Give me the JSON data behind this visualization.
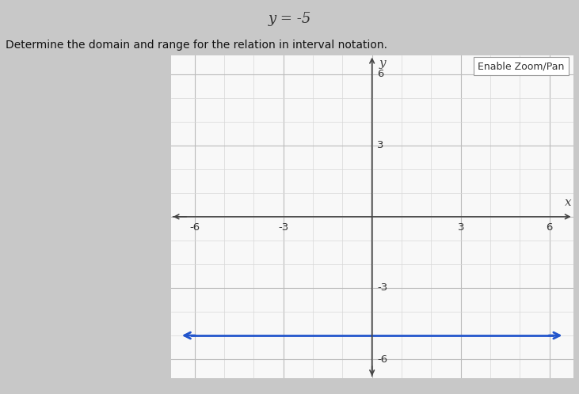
{
  "title": "y = -5",
  "subtitle": "Determine the domain and range for the relation in interval notation.",
  "button_text": "Enable Zoom/Pan",
  "xlim": [
    -6.8,
    6.8
  ],
  "ylim": [
    -6.8,
    6.8
  ],
  "xticks": [
    -6,
    -3,
    3,
    6
  ],
  "yticks": [
    -6,
    -3,
    3,
    6
  ],
  "xlabel": "x",
  "ylabel": "y",
  "grid_minor_color": "#d8d8d8",
  "grid_major_color": "#bbbbbb",
  "axis_color": "#444444",
  "line_y": -5,
  "line_color": "#2255cc",
  "line_xmin": -6.5,
  "line_xmax": 6.5,
  "fig_bg_color": "#c8c8c8",
  "plot_bg_color": "#f8f8f8",
  "panel_bg_color": "#ffffff",
  "tick_label_color": "#333333",
  "title_color": "#333333",
  "subtitle_color": "#111111",
  "button_bg": "#ffffff",
  "button_edge": "#aaaaaa"
}
